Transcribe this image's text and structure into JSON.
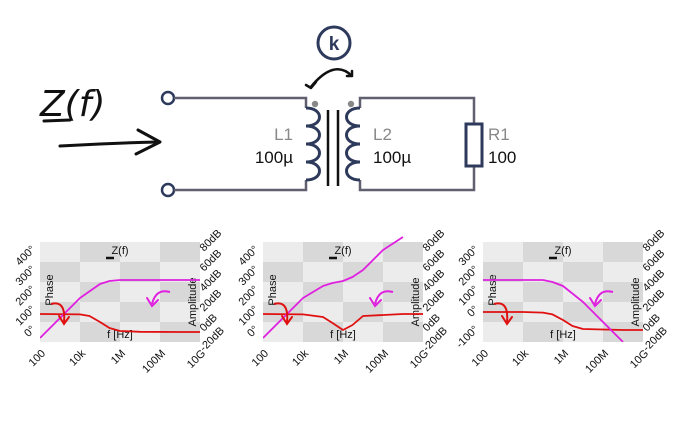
{
  "circuit": {
    "input_label": "Z(f)",
    "coupling_label": "k",
    "components": [
      {
        "name": "L1",
        "value": "100µ"
      },
      {
        "name": "L2",
        "value": "100µ"
      },
      {
        "name": "R1",
        "value": "100"
      }
    ]
  },
  "colors": {
    "wire": "#606070",
    "component": "#2e3a5c",
    "phase": "#e01010",
    "amplitude": "#e020e0",
    "grid_light": "#ececec",
    "grid_dark": "#d8d8d8"
  },
  "chart_data": [
    {
      "type": "line",
      "title": "Z(f)",
      "xlabel": "f [Hz]",
      "ylabel_left": "Phase",
      "ylabel_right": "Amplitude",
      "x_ticks": [
        "100",
        "10k",
        "1M",
        "100M",
        "10G"
      ],
      "y_left_ticks": [
        "0°",
        "100°",
        "200°",
        "300°",
        "400°"
      ],
      "y_right_ticks": [
        "-20dB",
        "0dB",
        "20dB",
        "40dB",
        "60dB",
        "80dB"
      ],
      "ylim_left": [
        -50,
        450
      ],
      "ylim_right": [
        -20,
        80
      ],
      "series": [
        {
          "name": "Phase",
          "axis": "left",
          "x": [
            100,
            10000,
            30000,
            100000,
            300000,
            1000000,
            10000000,
            1000000000,
            10000000000
          ],
          "y": [
            90,
            88,
            80,
            50,
            20,
            5,
            1,
            0,
            0
          ]
        },
        {
          "name": "Amplitude",
          "axis": "right",
          "x": [
            100,
            1000,
            10000,
            100000,
            300000,
            1000000,
            10000000,
            1000000000,
            10000000000
          ],
          "y": [
            -16,
            4,
            24,
            38,
            41,
            42,
            42,
            42,
            42
          ]
        }
      ]
    },
    {
      "type": "line",
      "title": "Z(f)",
      "xlabel": "f [Hz]",
      "ylabel_left": "Phase",
      "ylabel_right": "Amplitude",
      "x_ticks": [
        "100",
        "10k",
        "1M",
        "100M",
        "10G"
      ],
      "y_left_ticks": [
        "0°",
        "100°",
        "200°",
        "300°",
        "400°"
      ],
      "y_right_ticks": [
        "-20dB",
        "0dB",
        "20dB",
        "40dB",
        "60dB",
        "80dB"
      ],
      "ylim_left": [
        -50,
        450
      ],
      "ylim_right": [
        -20,
        80
      ],
      "series": [
        {
          "name": "Phase",
          "axis": "left",
          "x": [
            100,
            10000,
            100000,
            300000,
            1000000,
            3000000,
            10000000,
            1000000000,
            10000000000
          ],
          "y": [
            90,
            88,
            75,
            45,
            10,
            35,
            80,
            90,
            90
          ]
        },
        {
          "name": "Amplitude",
          "axis": "right",
          "x": [
            100,
            1000,
            10000,
            100000,
            300000,
            1000000,
            3000000,
            10000000,
            100000000,
            1000000000
          ],
          "y": [
            -16,
            4,
            24,
            36,
            39,
            41,
            45,
            52,
            72,
            85
          ]
        }
      ]
    },
    {
      "type": "line",
      "title": "Z(f)",
      "xlabel": "f [Hz]",
      "ylabel_left": "Phase",
      "ylabel_right": "Amplitude",
      "x_ticks": [
        "100",
        "10k",
        "1M",
        "100M",
        "10G"
      ],
      "y_left_ticks": [
        "-100°",
        "0°",
        "100°",
        "200°",
        "300°"
      ],
      "y_right_ticks": [
        "-20dB",
        "0dB",
        "20dB",
        "40dB",
        "60dB",
        "80dB"
      ],
      "ylim_left": [
        -150,
        350
      ],
      "ylim_right": [
        -20,
        80
      ],
      "series": [
        {
          "name": "Phase",
          "axis": "left",
          "x": [
            100,
            10000,
            100000,
            300000,
            1000000,
            3000000,
            10000000,
            1000000000,
            10000000000
          ],
          "y": [
            0,
            0,
            -3,
            -12,
            -40,
            -70,
            -85,
            -90,
            -90
          ]
        },
        {
          "name": "Amplitude",
          "axis": "right",
          "x": [
            100,
            10000,
            100000,
            300000,
            1000000,
            10000000,
            100000000,
            1000000000
          ],
          "y": [
            42,
            42,
            42,
            40,
            36,
            20,
            0,
            -20
          ]
        }
      ]
    }
  ]
}
